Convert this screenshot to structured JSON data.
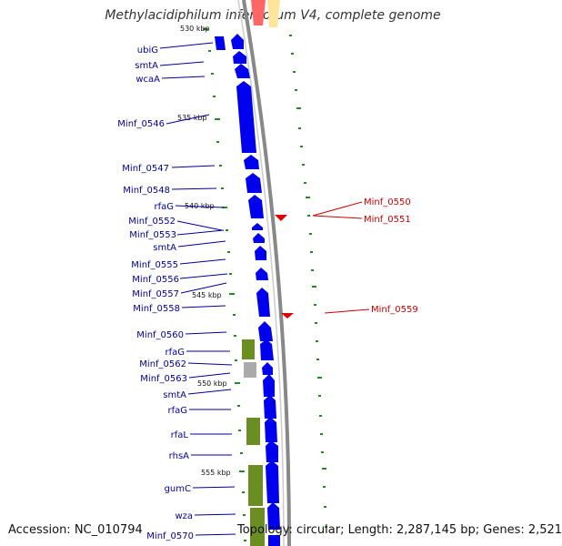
{
  "title": "Methylacidiphilum infernorum V4, complete genome",
  "accession_text": "Accession: NC_010794",
  "topology_text": "Topology: circular; Length: 2,287,145 bp; Genes: 2,521",
  "colors": {
    "cds": "#0000ee",
    "rna": "#6b8e23",
    "pseudo": "#aaaaaa",
    "label_left": "#000099",
    "label_right": "#cc0000",
    "tick": "#228b22",
    "backbone": "#888888"
  },
  "scale_labels": [
    "530 kbp",
    "535 kbp",
    "540 kbp",
    "545 kbp",
    "550 kbp",
    "555 kbp"
  ],
  "left_labels": [
    "ubiG",
    "smtA",
    "wcaA",
    "Minf_0546",
    "Minf_0547",
    "Minf_0548",
    "rfaG",
    "Minf_0552",
    "Minf_0553",
    "smtA",
    "Minf_0555",
    "Minf_0556",
    "Minf_0557",
    "Minf_0558",
    "Minf_0560",
    "rfaG",
    "Minf_0562",
    "Minf_0563",
    "smtA",
    "rfaG",
    "rfaL",
    "rhsA",
    "gumC",
    "wza",
    "Minf_0570"
  ],
  "right_labels": [
    "Minf_0550",
    "Minf_0551",
    "Minf_0559"
  ]
}
